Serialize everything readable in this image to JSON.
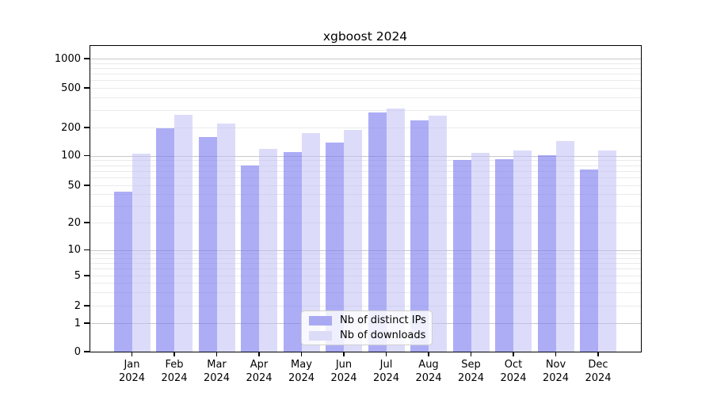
{
  "title": "xgboost 2024",
  "legend": {
    "entries": [
      "Nb of distinct IPs",
      "Nb of downloads"
    ]
  },
  "colors": {
    "bar_distinct_ips": "rgba(122,122,240,0.62)",
    "bar_downloads": "rgba(187,187,246,0.52)",
    "bar_distinct_ips_solid": "#a9a9f3",
    "bar_downloads_solid": "#dcdcf9",
    "grid_minor": "#eaeaea",
    "grid_major": "#c8c8c8",
    "axis": "#000000"
  },
  "chart_data": {
    "type": "bar",
    "title": "xgboost 2024",
    "categories": [
      "Jan 2024",
      "Feb 2024",
      "Mar 2024",
      "Apr 2024",
      "May 2024",
      "Jun 2024",
      "Jul 2024",
      "Aug 2024",
      "Sep 2024",
      "Oct 2024",
      "Nov 2024",
      "Dec 2024"
    ],
    "series": [
      {
        "name": "Nb of distinct IPs",
        "values": [
          43,
          196,
          158,
          79,
          110,
          138,
          283,
          238,
          91,
          93,
          101,
          72
        ]
      },
      {
        "name": "Nb of downloads",
        "values": [
          105,
          270,
          220,
          118,
          176,
          190,
          308,
          263,
          107,
          114,
          143,
          115
        ]
      }
    ],
    "xlabel": "",
    "ylabel": "",
    "yscale": "symlog",
    "ylim": [
      0,
      1350
    ],
    "yticks": [
      {
        "label": "0",
        "value": 0
      },
      {
        "label": "1",
        "value": 1
      },
      {
        "label": "2",
        "value": 2
      },
      {
        "label": "5",
        "value": 5
      },
      {
        "label": "10",
        "value": 10
      },
      {
        "label": "20",
        "value": 20
      },
      {
        "label": "50",
        "value": 50
      },
      {
        "label": "100",
        "value": 100
      },
      {
        "label": "200",
        "value": 200
      },
      {
        "label": "500",
        "value": 500
      },
      {
        "label": "1000",
        "value": 1000
      }
    ],
    "grid": true,
    "legend_position": "lower center"
  }
}
